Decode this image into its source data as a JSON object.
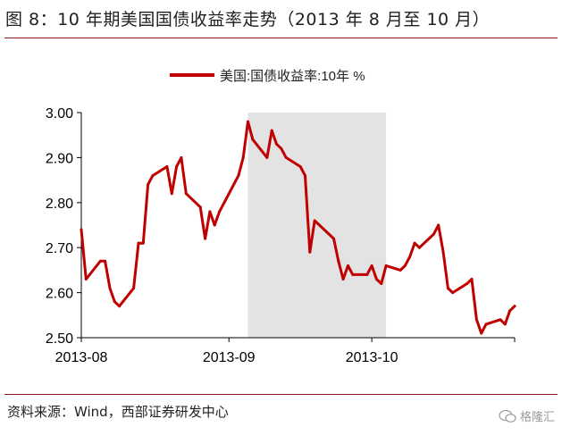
{
  "header": {
    "title": "图 8：10 年期美国国债收益率走势（2013 年 8 月至 10 月）"
  },
  "footer": {
    "source": "资料来源：Wind，西部证券研发中心",
    "watermark": "格隆汇"
  },
  "colors": {
    "line": "#c00000",
    "shade": "#e3e3e3",
    "axis": "#000000"
  },
  "chart_data": {
    "type": "line",
    "title": "",
    "xlabel": "",
    "ylabel": "",
    "ylim": [
      2.5,
      3.0
    ],
    "yticks": [
      "3.00",
      "2.90",
      "2.80",
      "2.70",
      "2.60",
      "2.50"
    ],
    "xlim": [
      "2013-08-01",
      "2013-10-31"
    ],
    "xticks": [
      {
        "date": "2013-08-01",
        "label": "2013-08"
      },
      {
        "date": "2013-09-01",
        "label": "2013-09"
      },
      {
        "date": "2013-10-01",
        "label": "2013-10"
      }
    ],
    "shaded_region": [
      "2013-09-05",
      "2013-10-04"
    ],
    "legend": {
      "position": "top-center",
      "label": "美国:国债收益率:10年 %"
    },
    "grid": false,
    "series": [
      {
        "name": "美国:国债收益率:10年 %",
        "points": [
          [
            "2013-08-01",
            2.74
          ],
          [
            "2013-08-02",
            2.63
          ],
          [
            "2013-08-05",
            2.67
          ],
          [
            "2013-08-06",
            2.67
          ],
          [
            "2013-08-07",
            2.61
          ],
          [
            "2013-08-08",
            2.58
          ],
          [
            "2013-08-09",
            2.57
          ],
          [
            "2013-08-12",
            2.61
          ],
          [
            "2013-08-13",
            2.71
          ],
          [
            "2013-08-14",
            2.71
          ],
          [
            "2013-08-15",
            2.84
          ],
          [
            "2013-08-16",
            2.86
          ],
          [
            "2013-08-19",
            2.88
          ],
          [
            "2013-08-20",
            2.82
          ],
          [
            "2013-08-21",
            2.88
          ],
          [
            "2013-08-22",
            2.9
          ],
          [
            "2013-08-23",
            2.82
          ],
          [
            "2013-08-26",
            2.79
          ],
          [
            "2013-08-27",
            2.72
          ],
          [
            "2013-08-28",
            2.78
          ],
          [
            "2013-08-29",
            2.75
          ],
          [
            "2013-08-30",
            2.78
          ],
          [
            "2013-09-03",
            2.86
          ],
          [
            "2013-09-04",
            2.9
          ],
          [
            "2013-09-05",
            2.98
          ],
          [
            "2013-09-06",
            2.94
          ],
          [
            "2013-09-09",
            2.9
          ],
          [
            "2013-09-10",
            2.96
          ],
          [
            "2013-09-11",
            2.93
          ],
          [
            "2013-09-12",
            2.92
          ],
          [
            "2013-09-13",
            2.9
          ],
          [
            "2013-09-16",
            2.88
          ],
          [
            "2013-09-17",
            2.86
          ],
          [
            "2013-09-18",
            2.69
          ],
          [
            "2013-09-19",
            2.76
          ],
          [
            "2013-09-20",
            2.75
          ],
          [
            "2013-09-23",
            2.72
          ],
          [
            "2013-09-24",
            2.67
          ],
          [
            "2013-09-25",
            2.63
          ],
          [
            "2013-09-26",
            2.66
          ],
          [
            "2013-09-27",
            2.64
          ],
          [
            "2013-09-30",
            2.64
          ],
          [
            "2013-10-01",
            2.66
          ],
          [
            "2013-10-02",
            2.63
          ],
          [
            "2013-10-03",
            2.62
          ],
          [
            "2013-10-04",
            2.66
          ],
          [
            "2013-10-07",
            2.65
          ],
          [
            "2013-10-08",
            2.66
          ],
          [
            "2013-10-09",
            2.68
          ],
          [
            "2013-10-10",
            2.71
          ],
          [
            "2013-10-11",
            2.7
          ],
          [
            "2013-10-14",
            2.73
          ],
          [
            "2013-10-15",
            2.75
          ],
          [
            "2013-10-16",
            2.69
          ],
          [
            "2013-10-17",
            2.61
          ],
          [
            "2013-10-18",
            2.6
          ],
          [
            "2013-10-21",
            2.62
          ],
          [
            "2013-10-22",
            2.63
          ],
          [
            "2013-10-23",
            2.54
          ],
          [
            "2013-10-24",
            2.51
          ],
          [
            "2013-10-25",
            2.53
          ],
          [
            "2013-10-28",
            2.54
          ],
          [
            "2013-10-29",
            2.53
          ],
          [
            "2013-10-30",
            2.56
          ],
          [
            "2013-10-31",
            2.57
          ]
        ]
      }
    ]
  }
}
